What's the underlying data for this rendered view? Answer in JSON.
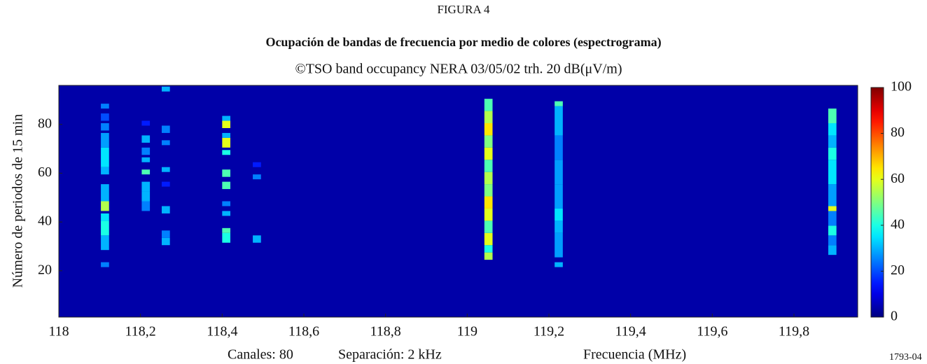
{
  "chart_data": {
    "type": "heatmap",
    "figure_label": "FIGURA 4",
    "title": "Ocupación de bandas de frecuencia por medio de colores (espectrograma)",
    "subtitle": "©TSO band occupancy NERA 03/05/02 trh. 20 dB(μV/m)",
    "y_label": "Número de periodos de 15 min",
    "channels_note": "Canales: 80",
    "spacing_note": "Separación: 2 kHz",
    "x_label": "Frecuencia (MHz)",
    "reference": "1793-04",
    "colormap": "jet",
    "xlim": [
      118,
      119.956
    ],
    "xticks": [
      118,
      {
        "value": 118.2,
        "label": "118,2"
      },
      {
        "value": 118.4,
        "label": "118,4"
      },
      {
        "value": 118.6,
        "label": "118,6"
      },
      {
        "value": 118.8,
        "label": "118,8"
      },
      119,
      {
        "value": 119.2,
        "label": "119,2"
      },
      {
        "value": 119.4,
        "label": "119,4"
      },
      {
        "value": 119.6,
        "label": "119,6"
      },
      {
        "value": 119.8,
        "label": "119,8"
      }
    ],
    "ylim": [
      1,
      96
    ],
    "yticks": [
      20,
      40,
      60,
      80
    ],
    "clim": [
      0,
      100
    ],
    "cticks": [
      0,
      20,
      40,
      60,
      80,
      100
    ],
    "background": 4,
    "channel_width": 0.02,
    "columns": [
      {
        "x": 118.113,
        "runs": [
          [
            22,
            23,
            25
          ],
          [
            29,
            34,
            30
          ],
          [
            35,
            40,
            40
          ],
          [
            41,
            43,
            35
          ],
          [
            45,
            48,
            55
          ],
          [
            49,
            55,
            30
          ],
          [
            60,
            62,
            30
          ],
          [
            63,
            70,
            35
          ],
          [
            71,
            76,
            28
          ],
          [
            78,
            80,
            25
          ],
          [
            82,
            84,
            20
          ],
          [
            87,
            88,
            25
          ]
        ]
      },
      {
        "x": 118.213,
        "runs": [
          [
            45,
            48,
            25
          ],
          [
            49,
            52,
            30
          ],
          [
            53,
            56,
            30
          ],
          [
            60,
            61,
            45
          ],
          [
            65,
            66,
            30
          ],
          [
            68,
            70,
            25
          ],
          [
            73,
            75,
            30
          ],
          [
            80,
            81,
            15
          ]
        ]
      },
      {
        "x": 118.262,
        "runs": [
          [
            31,
            33,
            30
          ],
          [
            34,
            36,
            25
          ],
          [
            44,
            46,
            30
          ],
          [
            55,
            56,
            15
          ],
          [
            61,
            62,
            30
          ],
          [
            72,
            73,
            25
          ],
          [
            77,
            79,
            25
          ],
          [
            94,
            95,
            30
          ]
        ]
      },
      {
        "x": 118.41,
        "runs": [
          [
            32,
            35,
            40
          ],
          [
            36,
            37,
            45
          ],
          [
            43,
            44,
            30
          ],
          [
            47,
            48,
            25
          ],
          [
            54,
            56,
            45
          ],
          [
            59,
            61,
            45
          ],
          [
            68,
            69,
            40
          ],
          [
            71,
            74,
            60
          ],
          [
            75,
            76,
            30
          ],
          [
            79,
            81,
            60
          ],
          [
            82,
            83,
            30
          ]
        ]
      },
      {
        "x": 118.485,
        "runs": [
          [
            32,
            34,
            30
          ],
          [
            58,
            59,
            25
          ],
          [
            63,
            64,
            15
          ]
        ]
      },
      {
        "x": 119.052,
        "runs": [
          [
            25,
            27,
            55
          ],
          [
            28,
            30,
            40
          ],
          [
            31,
            35,
            60
          ],
          [
            36,
            40,
            45
          ],
          [
            41,
            45,
            60
          ],
          [
            46,
            50,
            65
          ],
          [
            51,
            55,
            50
          ],
          [
            56,
            60,
            55
          ],
          [
            61,
            65,
            45
          ],
          [
            66,
            70,
            60
          ],
          [
            71,
            75,
            50
          ],
          [
            76,
            80,
            65
          ],
          [
            81,
            85,
            55
          ],
          [
            86,
            90,
            45
          ]
        ]
      },
      {
        "x": 119.224,
        "runs": [
          [
            22,
            23,
            30
          ],
          [
            26,
            35,
            28
          ],
          [
            36,
            40,
            30
          ],
          [
            41,
            45,
            35
          ],
          [
            46,
            55,
            28
          ],
          [
            56,
            65,
            28
          ],
          [
            66,
            75,
            25
          ],
          [
            76,
            87,
            30
          ],
          [
            88,
            89,
            45
          ]
        ]
      },
      {
        "x": 119.894,
        "runs": [
          [
            27,
            30,
            30
          ],
          [
            31,
            34,
            25
          ],
          [
            35,
            38,
            40
          ],
          [
            39,
            44,
            25
          ],
          [
            45,
            46,
            60
          ],
          [
            47,
            55,
            28
          ],
          [
            56,
            65,
            35
          ],
          [
            66,
            70,
            40
          ],
          [
            71,
            75,
            30
          ],
          [
            76,
            80,
            35
          ],
          [
            81,
            86,
            45
          ]
        ]
      }
    ]
  }
}
